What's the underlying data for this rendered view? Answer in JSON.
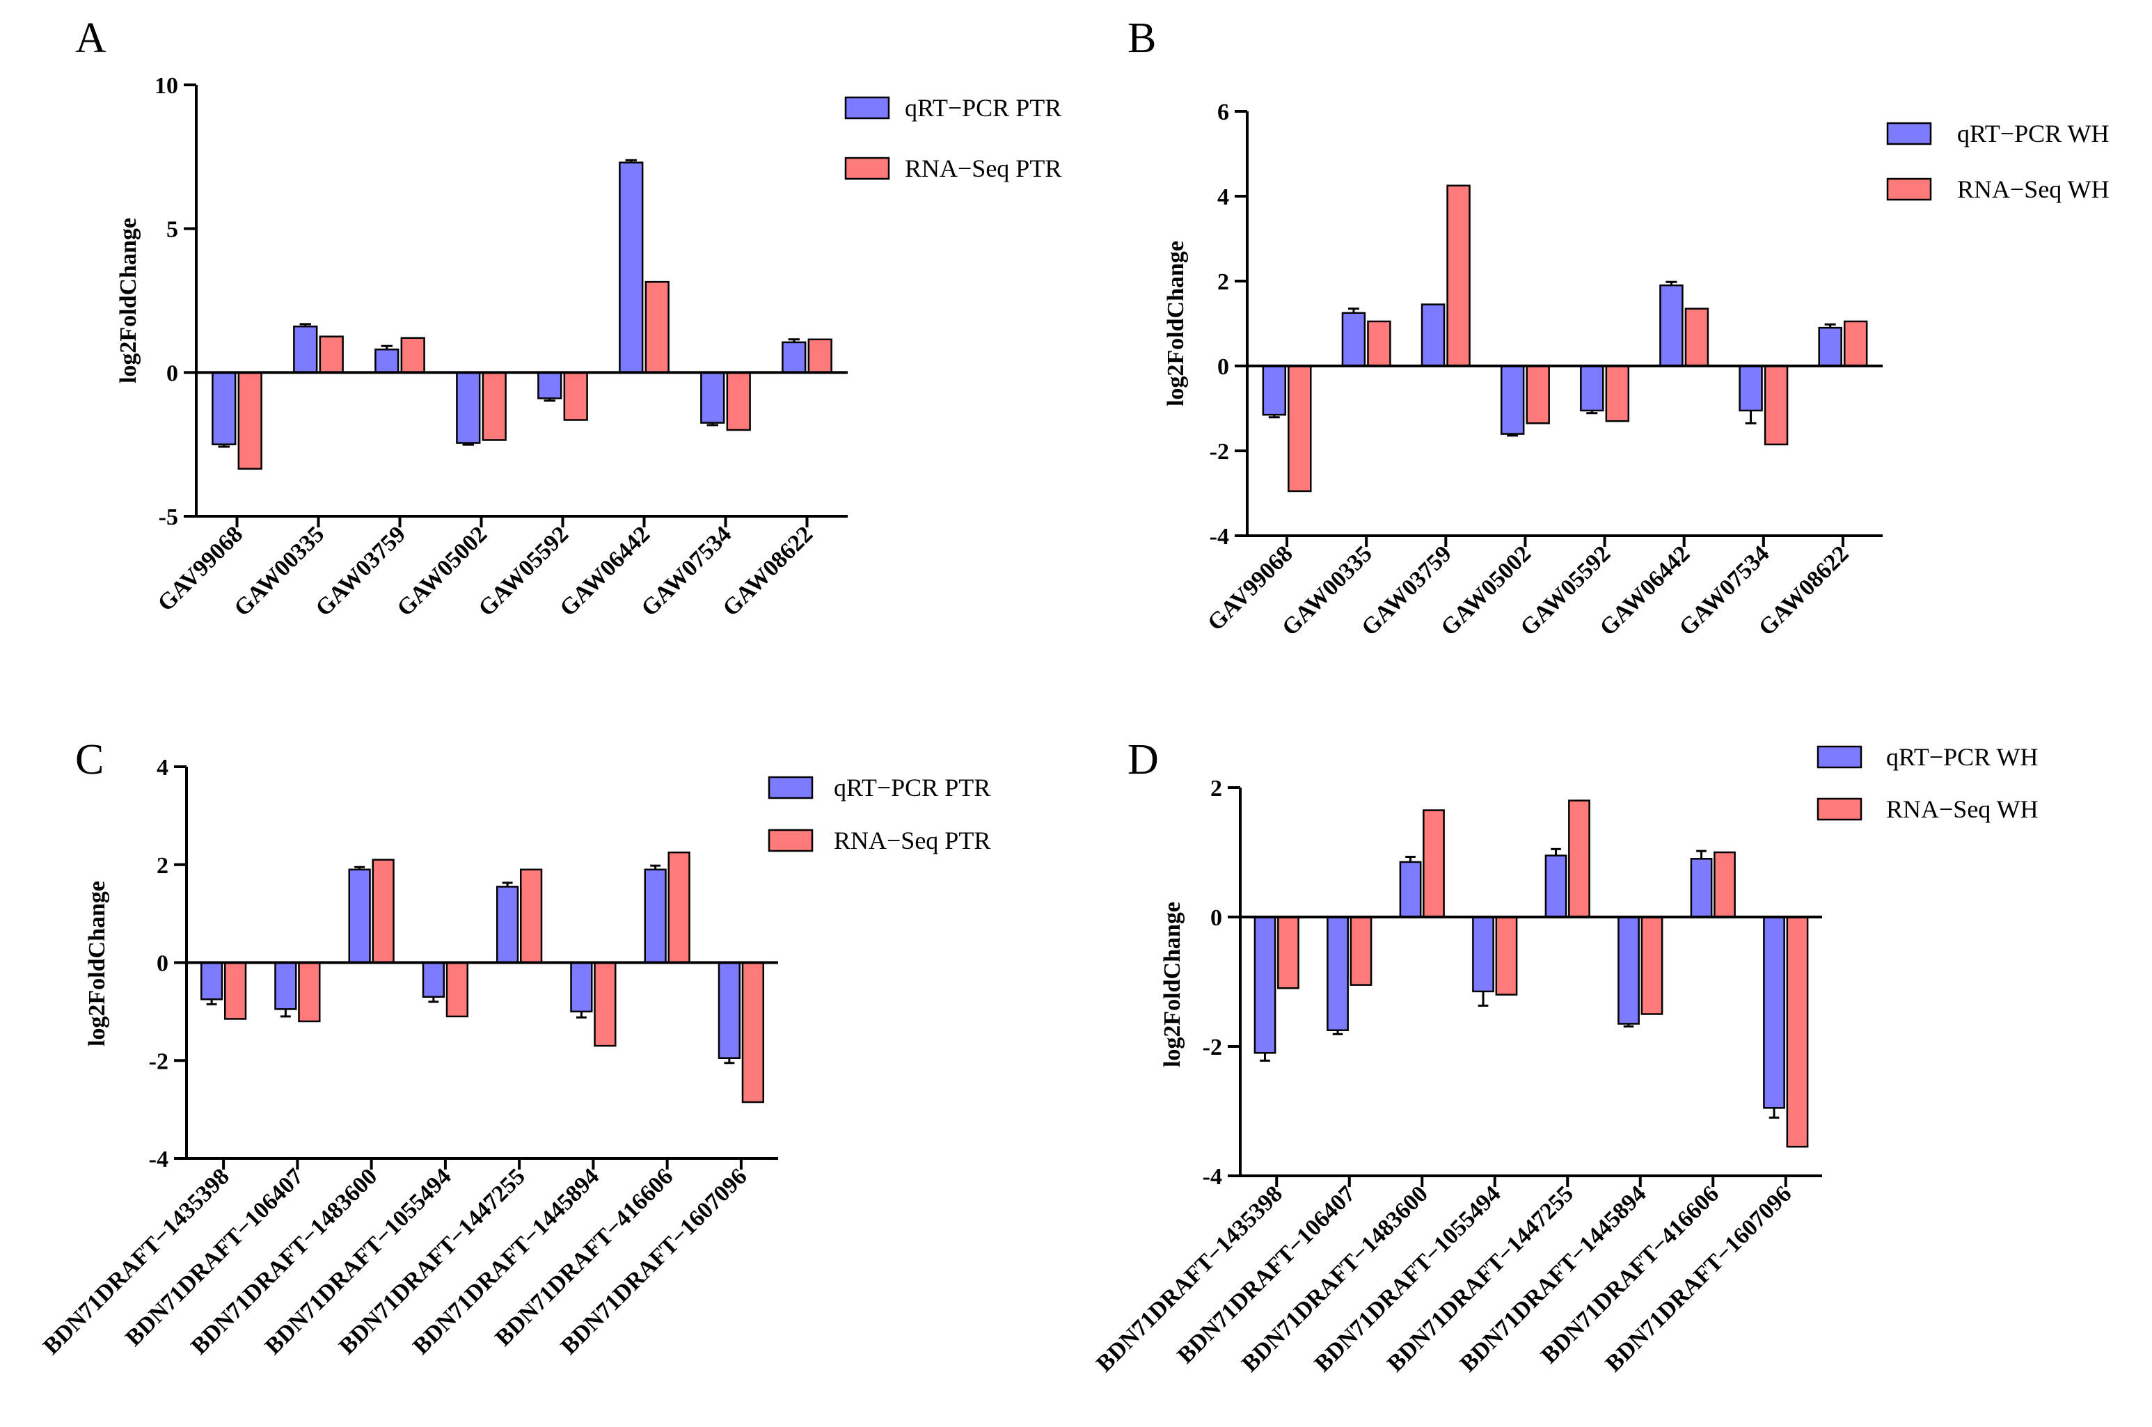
{
  "colors": {
    "qrt": "#7d7bff",
    "rna": "#ff7b7b",
    "axis": "#000000"
  },
  "chart_data": [
    {
      "panel": "A",
      "type": "bar",
      "title": "",
      "xlabel": "",
      "ylabel": "log2FoldChange",
      "ylim": [
        -5,
        10
      ],
      "yticks": [
        -5,
        0,
        5,
        10
      ],
      "categories": [
        "GAV99068",
        "GAW00335",
        "GAW03759",
        "GAW05002",
        "GAW05592",
        "GAW06442",
        "GAW07534",
        "GAW08622"
      ],
      "series": [
        {
          "name": "qRT−PCR PTR",
          "values": [
            -2.5,
            1.6,
            0.8,
            -2.45,
            -0.9,
            7.3,
            -1.75,
            1.05
          ],
          "errors": [
            0.08,
            0.08,
            0.12,
            0.06,
            0.08,
            0.08,
            0.08,
            0.1
          ]
        },
        {
          "name": "RNA−Seq PTR",
          "values": [
            -3.35,
            1.25,
            1.2,
            -2.35,
            -1.65,
            3.15,
            -2.0,
            1.15
          ]
        }
      ],
      "legend": "top-right"
    },
    {
      "panel": "B",
      "type": "bar",
      "title": "",
      "xlabel": "",
      "ylabel": "log2FoldChange",
      "ylim": [
        -4,
        6
      ],
      "yticks": [
        -4,
        -2,
        0,
        2,
        4,
        6
      ],
      "categories": [
        "GAV99068",
        "GAW00335",
        "GAW03759",
        "GAW05002",
        "GAW05592",
        "GAW06442",
        "GAW07534",
        "GAW08622"
      ],
      "series": [
        {
          "name": "qRT−PCR WH",
          "values": [
            -1.15,
            1.25,
            1.45,
            -1.6,
            -1.05,
            1.9,
            -1.05,
            0.9
          ],
          "errors": [
            0.06,
            0.1,
            0.0,
            0.04,
            0.06,
            0.08,
            0.3,
            0.08
          ]
        },
        {
          "name": "RNA−Seq WH",
          "values": [
            -2.95,
            1.05,
            4.25,
            -1.35,
            -1.3,
            1.35,
            -1.85,
            1.05
          ]
        }
      ],
      "legend": "top-right"
    },
    {
      "panel": "C",
      "type": "bar",
      "title": "",
      "xlabel": "",
      "ylabel": "log2FoldChange",
      "ylim": [
        -4,
        4
      ],
      "yticks": [
        -4,
        -2,
        0,
        2,
        4
      ],
      "categories": [
        "BDN71DRAFT−1435398",
        "BDN71DRAFT−106407",
        "BDN71DRAFT−1483600",
        "BDN71DRAFT−1055494",
        "BDN71DRAFT−1447255",
        "BDN71DRAFT−1445894",
        "BDN71DRAFT−416606",
        "BDN71DRAFT−1607096"
      ],
      "series": [
        {
          "name": "qRT−PCR PTR",
          "values": [
            -0.75,
            -0.95,
            1.9,
            -0.7,
            1.55,
            -1.0,
            1.9,
            -1.95
          ],
          "errors": [
            0.1,
            0.15,
            0.05,
            0.1,
            0.08,
            0.12,
            0.08,
            0.1
          ]
        },
        {
          "name": "RNA−Seq PTR",
          "values": [
            -1.15,
            -1.2,
            2.1,
            -1.1,
            1.9,
            -1.7,
            2.25,
            -2.85
          ]
        }
      ],
      "legend": "top-right"
    },
    {
      "panel": "D",
      "type": "bar",
      "title": "",
      "xlabel": "",
      "ylabel": "log2FoldChange",
      "ylim": [
        -4,
        2
      ],
      "yticks": [
        -4,
        -2,
        0,
        2
      ],
      "categories": [
        "BDN71DRAFT−1435398",
        "BDN71DRAFT−106407",
        "BDN71DRAFT−1483600",
        "BDN71DRAFT−1055494",
        "BDN71DRAFT−1447255",
        "BDN71DRAFT−1445894",
        "BDN71DRAFT−416606",
        "BDN71DRAFT−1607096"
      ],
      "series": [
        {
          "name": "qRT−PCR WH",
          "values": [
            -2.1,
            -1.75,
            0.85,
            -1.15,
            0.95,
            -1.65,
            0.9,
            -2.95
          ],
          "errors": [
            0.12,
            0.06,
            0.08,
            0.22,
            0.1,
            0.04,
            0.12,
            0.15
          ]
        },
        {
          "name": "RNA−Seq WH",
          "values": [
            -1.1,
            -1.05,
            1.65,
            -1.2,
            1.8,
            -1.5,
            1.0,
            -3.55
          ]
        }
      ],
      "legend": "top-right"
    }
  ]
}
